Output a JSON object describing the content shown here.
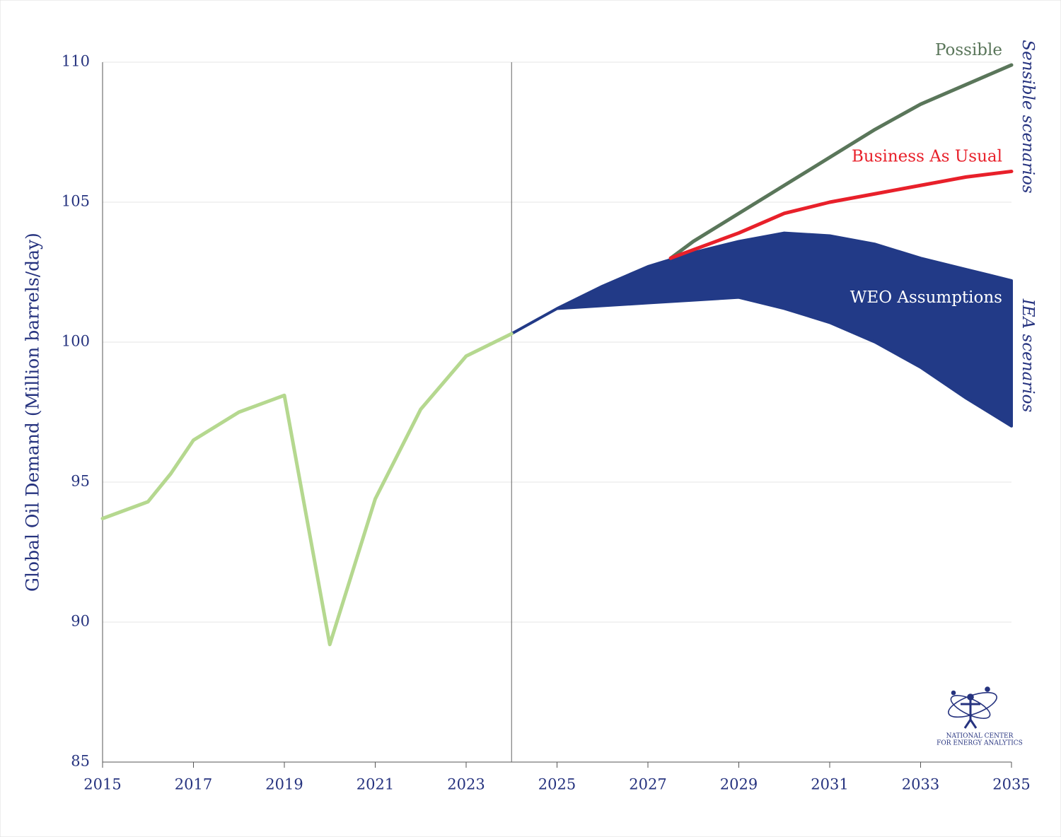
{
  "chart_data": {
    "type": "line",
    "y_label": "Global Oil Demand (Million barrels/day)",
    "xlim": [
      2015,
      2035
    ],
    "ylim": [
      85,
      110
    ],
    "xticks": [
      2015,
      2017,
      2019,
      2021,
      2023,
      2025,
      2027,
      2029,
      2031,
      2033,
      2035
    ],
    "yticks": [
      85,
      90,
      95,
      100,
      105,
      110
    ],
    "grid": true,
    "divider_x": 2024,
    "series": [
      {
        "color": "#b5d88f",
        "x": [
          2015,
          2016,
          2016.5,
          2017,
          2018,
          2019,
          2020,
          2021,
          2022,
          2023,
          2024
        ],
        "values": [
          93.7,
          94.3,
          95.3,
          96.5,
          97.5,
          98.1,
          89.2,
          94.4,
          97.6,
          99.5,
          100.3
        ]
      },
      {
        "name": "Possible",
        "color": "#5a765a",
        "x": [
          2027.5,
          2028,
          2029,
          2030,
          2031,
          2032,
          2033,
          2034,
          2035
        ],
        "values": [
          103.0,
          103.6,
          104.6,
          105.6,
          106.6,
          107.6,
          108.5,
          109.2,
          109.9
        ]
      },
      {
        "name": "Business As Usual",
        "color": "#e8202a",
        "x": [
          2027.5,
          2028,
          2029,
          2030,
          2031,
          2032,
          2033,
          2034,
          2035
        ],
        "values": [
          103.0,
          103.3,
          103.9,
          104.6,
          105.0,
          105.3,
          105.6,
          105.9,
          106.1
        ]
      }
    ],
    "band": {
      "name": "WEO Assumptions",
      "color": "#223a87",
      "x": [
        2024,
        2025,
        2026,
        2027,
        2028,
        2029,
        2030,
        2031,
        2032,
        2033,
        2034,
        2035
      ],
      "upper": [
        100.3,
        101.2,
        102.0,
        102.7,
        103.2,
        103.6,
        103.9,
        103.8,
        103.5,
        103.0,
        102.6,
        102.2
      ],
      "lower": [
        100.3,
        101.2,
        101.3,
        101.4,
        101.5,
        101.6,
        101.2,
        100.7,
        100.0,
        99.1,
        98.0,
        97.0
      ]
    },
    "group_labels": [
      "Sensible scenarios",
      "IEA scenarios"
    ]
  },
  "logo": {
    "lines": [
      "NATIONAL CENTER",
      "FOR ENERGY ANALYTICS"
    ]
  }
}
